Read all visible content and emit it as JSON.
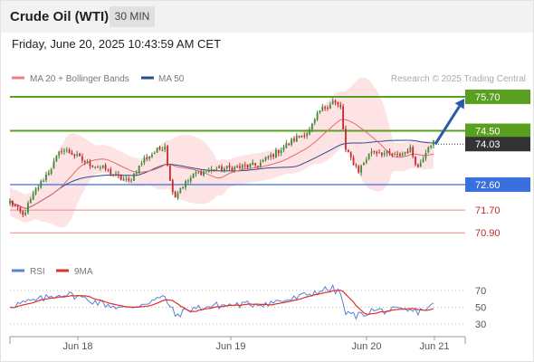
{
  "header": {
    "title": "Crude Oil (WTI)",
    "timeframe": "30 MIN",
    "datetime": "Friday, June 20, 2025 10:43:59 AM CET"
  },
  "legend": {
    "items": [
      {
        "label": "MA 20 + Bollinger Bands",
        "color": "#f08080"
      },
      {
        "label": "MA 50",
        "color": "#2a4d8f"
      }
    ],
    "credit": "Research © 2025 Trading Central"
  },
  "colors": {
    "up": "#3a8a3a",
    "down": "#c0282f",
    "resistance": "#5aa020",
    "support": "#3a6fe0",
    "target": "#e88a8a",
    "arrow": "#2a5aa8",
    "band": "#fbd0d0",
    "rsi": "#5b7fd6",
    "rsi_ma": "#e0302a",
    "current": "#333333"
  },
  "chart_data": [
    {
      "type": "candlestick",
      "title": "",
      "x_ticks": [
        "Jun 18",
        "Jun 19",
        "Jun 20",
        "Jun 21"
      ],
      "ylim": [
        70.3,
        76.05
      ],
      "current_price": "74.03",
      "levels": [
        {
          "value": 75.7,
          "label": "75.70",
          "kind": "resistance"
        },
        {
          "value": 74.5,
          "label": "74.50",
          "kind": "resistance"
        },
        {
          "value": 72.6,
          "label": "72.60",
          "kind": "support"
        },
        {
          "value": 71.7,
          "label": "71.70",
          "kind": "target"
        },
        {
          "value": 70.9,
          "label": "70.90",
          "kind": "target"
        }
      ],
      "forecast_arrow": {
        "from_price": 74.03,
        "to_price": 75.7
      },
      "anchors": [
        [
          0,
          72.0
        ],
        [
          5,
          71.5
        ],
        [
          10,
          72.4
        ],
        [
          16,
          73.2
        ],
        [
          20,
          73.85
        ],
        [
          24,
          73.7
        ],
        [
          30,
          73.35
        ],
        [
          37,
          73.15
        ],
        [
          42,
          72.85
        ],
        [
          46,
          72.7
        ],
        [
          52,
          73.5
        ],
        [
          57,
          73.8
        ],
        [
          60,
          74.0
        ],
        [
          62,
          72.7
        ],
        [
          64,
          72.2
        ],
        [
          66,
          72.5
        ],
        [
          72,
          73.0
        ],
        [
          80,
          73.15
        ],
        [
          88,
          73.2
        ],
        [
          96,
          73.3
        ],
        [
          104,
          73.8
        ],
        [
          110,
          74.2
        ],
        [
          116,
          74.5
        ],
        [
          120,
          75.2
        ],
        [
          125,
          75.55
        ],
        [
          128,
          75.3
        ],
        [
          130,
          73.8
        ],
        [
          135,
          73.1
        ],
        [
          140,
          73.8
        ],
        [
          145,
          73.7
        ],
        [
          150,
          73.6
        ],
        [
          155,
          73.85
        ],
        [
          158,
          73.2
        ],
        [
          162,
          74.0
        ],
        [
          164,
          74.1
        ]
      ],
      "candle_count": 165
    },
    {
      "type": "line",
      "title": "RSI",
      "series": [
        {
          "name": "RSI"
        },
        {
          "name": "9MA"
        }
      ],
      "y_ticks": [
        "70",
        "50",
        "30"
      ],
      "ylim": [
        30,
        70
      ],
      "anchors": [
        [
          0,
          52
        ],
        [
          10,
          58
        ],
        [
          20,
          66
        ],
        [
          25,
          64
        ],
        [
          35,
          55
        ],
        [
          45,
          48
        ],
        [
          55,
          58
        ],
        [
          60,
          62
        ],
        [
          64,
          40
        ],
        [
          70,
          48
        ],
        [
          80,
          52
        ],
        [
          90,
          53
        ],
        [
          100,
          55
        ],
        [
          110,
          60
        ],
        [
          115,
          65
        ],
        [
          120,
          70
        ],
        [
          125,
          72
        ],
        [
          128,
          66
        ],
        [
          130,
          42
        ],
        [
          135,
          40
        ],
        [
          140,
          46
        ],
        [
          150,
          46
        ],
        [
          158,
          45
        ],
        [
          164,
          52
        ]
      ]
    }
  ]
}
